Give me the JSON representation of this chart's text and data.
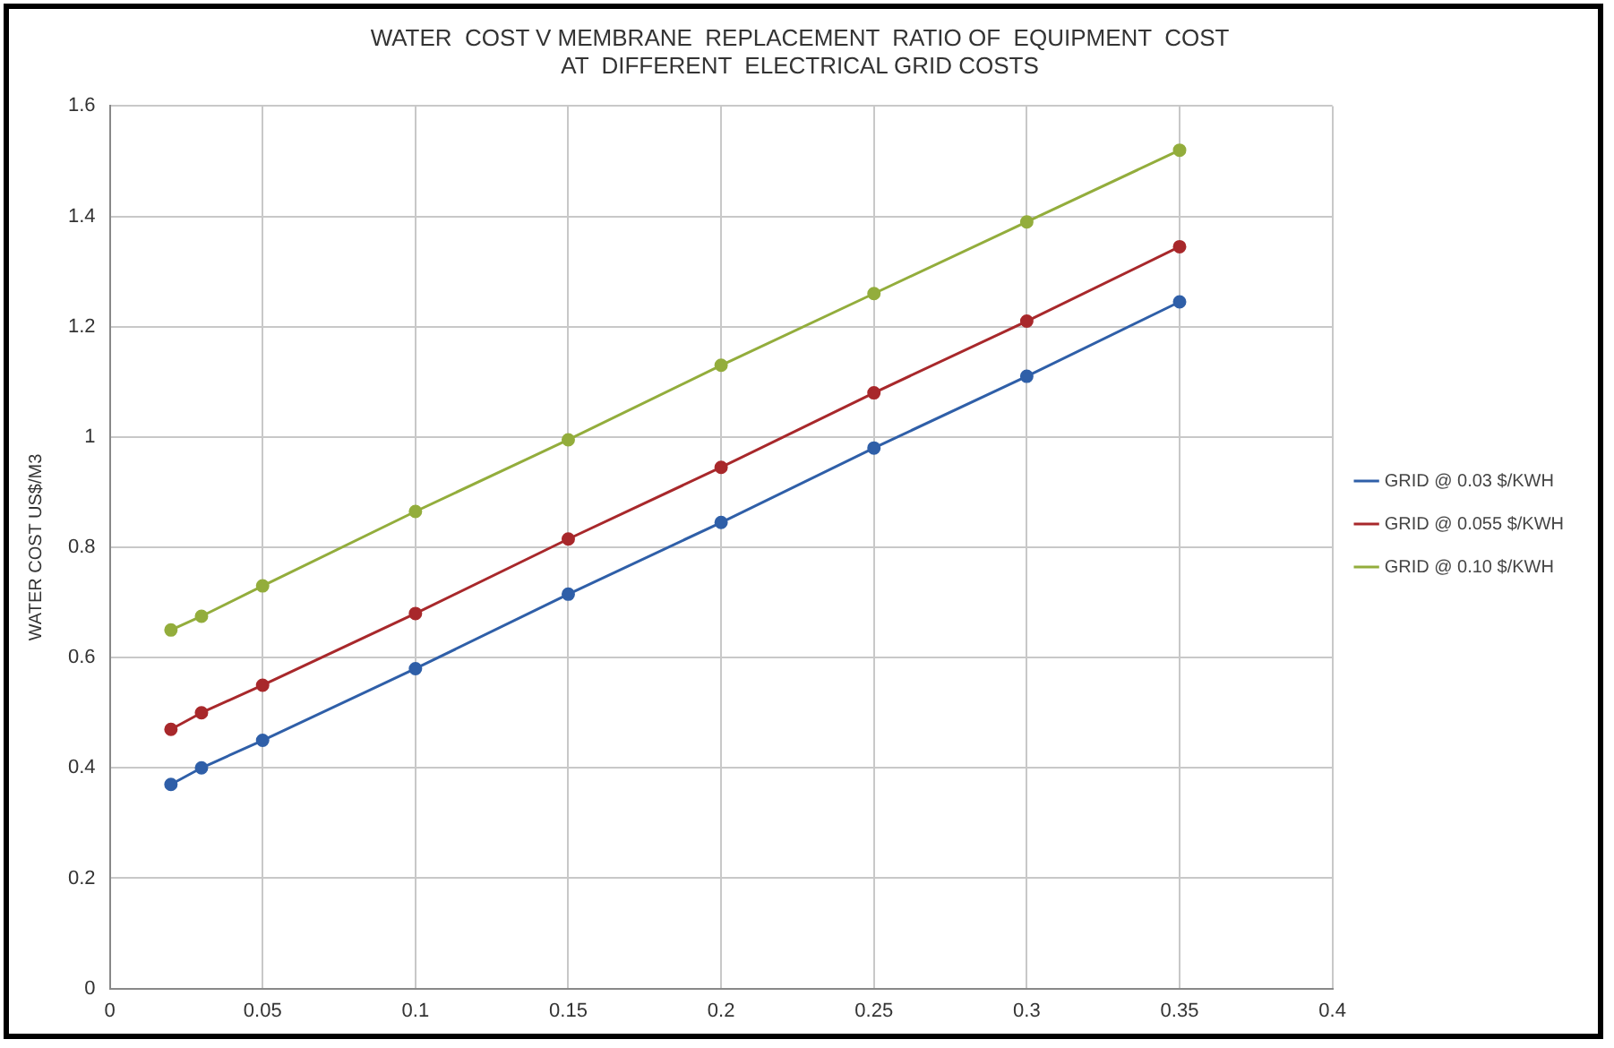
{
  "chart_data": {
    "type": "line",
    "title": [
      "WATER  COST V MEMBRANE  REPLACEMENT  RATIO OF  EQUIPMENT  COST",
      "AT  DIFFERENT  ELECTRICAL GRID COSTS"
    ],
    "ylabel": "WATER COST US$/M3",
    "x": [
      0.02,
      0.03,
      0.05,
      0.1,
      0.15,
      0.2,
      0.25,
      0.3,
      0.35
    ],
    "series": [
      {
        "name": "GRID @ 0.03 $/KWH",
        "color": "#2f5fa8",
        "values": [
          0.37,
          0.4,
          0.45,
          0.58,
          0.715,
          0.845,
          0.98,
          1.11,
          1.245
        ]
      },
      {
        "name": "GRID @ 0.055 $/KWH",
        "color": "#a8282b",
        "values": [
          0.47,
          0.5,
          0.55,
          0.68,
          0.815,
          0.945,
          1.08,
          1.21,
          1.345
        ]
      },
      {
        "name": "GRID @ 0.10 $/KWH",
        "color": "#93ad3c",
        "values": [
          0.65,
          0.675,
          0.73,
          0.865,
          0.995,
          1.13,
          1.26,
          1.39,
          1.52
        ]
      }
    ],
    "xlim": [
      0,
      0.4
    ],
    "xticks": [
      0,
      0.05,
      0.1,
      0.15,
      0.2,
      0.25,
      0.3,
      0.35,
      0.4
    ],
    "ylim": [
      0,
      1.6
    ],
    "yticks": [
      0,
      0.2,
      0.4,
      0.6,
      0.8,
      1,
      1.2,
      1.4,
      1.6
    ],
    "grid": true,
    "legend": "right",
    "marker": "circle",
    "line_style": "solid"
  }
}
